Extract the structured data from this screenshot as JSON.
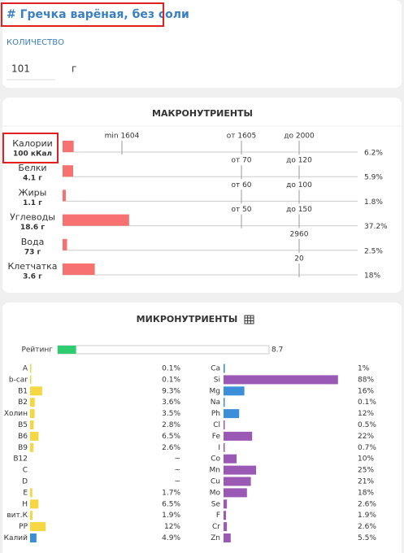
{
  "header": {
    "title": "# Гречка варёная, без соли",
    "quantity_label": "КОЛИЧЕСТВО",
    "quantity": "101",
    "unit": "г"
  },
  "macros": {
    "title": "МАКРОНУТРИЕНТЫ",
    "color": "#f87171",
    "rows": [
      {
        "name": "Калории",
        "amount": "100 кКал",
        "percent": 6.2,
        "percent_label": "6.2%",
        "markers": [
          "min 1604",
          "от 1605",
          "до 2000"
        ]
      },
      {
        "name": "Белки",
        "amount": "4.1 г",
        "percent": 5.9,
        "percent_label": "5.9%",
        "markers": [
          "от 70",
          "до 120"
        ]
      },
      {
        "name": "Жиры",
        "amount": "1.1 г",
        "percent": 1.8,
        "percent_label": "1.8%",
        "markers": [
          "от 60",
          "до 100"
        ]
      },
      {
        "name": "Углеводы",
        "amount": "18.6 г",
        "percent": 37.2,
        "percent_label": "37.2%",
        "markers": [
          "от 50",
          "до 150"
        ]
      },
      {
        "name": "Вода",
        "amount": "73 г",
        "percent": 2.5,
        "percent_label": "2.5%",
        "markers": [
          "2960"
        ]
      },
      {
        "name": "Клетчатка",
        "amount": "3.6 г",
        "percent": 18,
        "percent_label": "18%",
        "markers": [
          "20"
        ]
      }
    ]
  },
  "micros": {
    "title": "МИКРОНУТРИЕНТЫ",
    "rating": {
      "label": "Рейтинг",
      "value": 8.7,
      "color": "#2ecc71"
    },
    "left": [
      {
        "name": "A",
        "value": 0.1,
        "label": "0.1%",
        "color": "#f5d742"
      },
      {
        "name": "b-car",
        "value": 0.1,
        "label": "0.1%",
        "color": "#f5d742"
      },
      {
        "name": "B1",
        "value": 9.3,
        "label": "9.3%",
        "color": "#f5d742"
      },
      {
        "name": "B2",
        "value": 3.6,
        "label": "3.6%",
        "color": "#f5d742"
      },
      {
        "name": "Холин",
        "value": 3.5,
        "label": "3.5%",
        "color": "#f5d742"
      },
      {
        "name": "B5",
        "value": 2.8,
        "label": "2.8%",
        "color": "#f5d742"
      },
      {
        "name": "B6",
        "value": 6.5,
        "label": "6.5%",
        "color": "#f5d742"
      },
      {
        "name": "B9",
        "value": 2.6,
        "label": "2.6%",
        "color": "#f5d742"
      },
      {
        "name": "B12",
        "value": null,
        "label": "~",
        "color": "#f5d742"
      },
      {
        "name": "C",
        "value": null,
        "label": "~",
        "color": "#f5d742"
      },
      {
        "name": "D",
        "value": null,
        "label": "~",
        "color": "#f5d742"
      },
      {
        "name": "E",
        "value": 1.7,
        "label": "1.7%",
        "color": "#f5d742"
      },
      {
        "name": "H",
        "value": 6.5,
        "label": "6.5%",
        "color": "#f5d742"
      },
      {
        "name": "вит.К",
        "value": 1.9,
        "label": "1.9%",
        "color": "#f5d742"
      },
      {
        "name": "PP",
        "value": 12,
        "label": "12%",
        "color": "#f5d742"
      },
      {
        "name": "Калий",
        "value": 4.9,
        "label": "4.9%",
        "color": "#3b8fd9"
      }
    ],
    "right": [
      {
        "name": "Ca",
        "value": 1,
        "label": "1%",
        "color": "#3b8fd9"
      },
      {
        "name": "Si",
        "value": 88,
        "label": "88%",
        "color": "#9b59b6"
      },
      {
        "name": "Mg",
        "value": 16,
        "label": "16%",
        "color": "#3b8fd9"
      },
      {
        "name": "Na",
        "value": 0.1,
        "label": "0.1%",
        "color": "#3b8fd9"
      },
      {
        "name": "Ph",
        "value": 12,
        "label": "12%",
        "color": "#3b8fd9"
      },
      {
        "name": "Cl",
        "value": 0.5,
        "label": "0.5%",
        "color": "#9b59b6"
      },
      {
        "name": "Fe",
        "value": 22,
        "label": "22%",
        "color": "#9b59b6"
      },
      {
        "name": "I",
        "value": 0.7,
        "label": "0.7%",
        "color": "#9b59b6"
      },
      {
        "name": "Co",
        "value": 10,
        "label": "10%",
        "color": "#9b59b6"
      },
      {
        "name": "Mn",
        "value": 25,
        "label": "25%",
        "color": "#9b59b6"
      },
      {
        "name": "Cu",
        "value": 21,
        "label": "21%",
        "color": "#9b59b6"
      },
      {
        "name": "Mo",
        "value": 18,
        "label": "18%",
        "color": "#9b59b6"
      },
      {
        "name": "Se",
        "value": 2.6,
        "label": "2.6%",
        "color": "#9b59b6"
      },
      {
        "name": "F",
        "value": 1.9,
        "label": "1.9%",
        "color": "#9b59b6"
      },
      {
        "name": "Cr",
        "value": 2.6,
        "label": "2.6%",
        "color": "#9b59b6"
      },
      {
        "name": "Zn",
        "value": 5.5,
        "label": "5.5%",
        "color": "#9b59b6"
      }
    ]
  }
}
